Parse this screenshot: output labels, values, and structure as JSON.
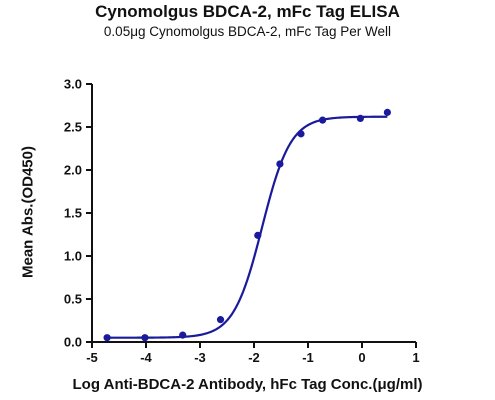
{
  "chart_data": {
    "type": "scatter",
    "title": "Cynomolgus BDCA-2, mFc Tag ELISA",
    "subtitle": "0.05μg Cynomolgus BDCA-2, mFc Tag Per Well",
    "xlabel": "Log Anti-BDCA-2 Antibody, hFc Tag Conc.(μg/ml)",
    "ylabel": "Mean Abs.(OD450)",
    "xlim": [
      -5,
      1
    ],
    "ylim": [
      0,
      3.0
    ],
    "x_ticks": [
      "-5",
      "-4",
      "-3",
      "-2",
      "-1",
      "0",
      "1"
    ],
    "y_ticks": [
      "0.0",
      "0.5",
      "1.0",
      "1.5",
      "2.0",
      "2.5",
      "3.0"
    ],
    "series": [
      {
        "x": [
          -4.72,
          -4.02,
          -3.32,
          -2.62,
          -1.93,
          -1.52,
          -1.13,
          -0.73,
          -0.03,
          0.47
        ],
        "y": [
          0.05,
          0.05,
          0.08,
          0.26,
          1.24,
          2.07,
          2.42,
          2.58,
          2.6,
          2.67
        ],
        "color": "#1a1a9c"
      }
    ],
    "fit": {
      "bottom": 0.05,
      "top": 2.62,
      "logEC50": -1.85,
      "hill": 1.65
    },
    "grid": false
  }
}
